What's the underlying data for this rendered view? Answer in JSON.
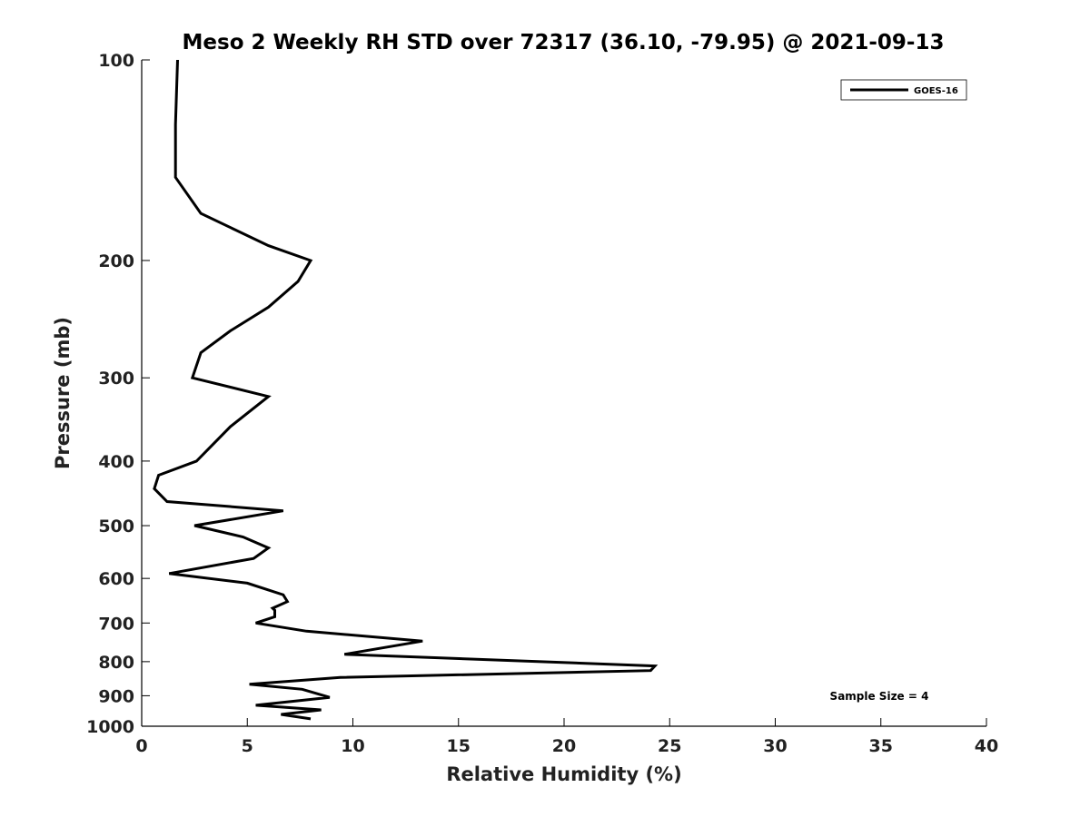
{
  "chart_data": {
    "type": "line",
    "title": "Meso 2 Weekly RH STD over 72317 (36.10, -79.95) @ 2021-09-13",
    "xlabel": "Relative Humidity (%)",
    "ylabel": "Pressure (mb)",
    "xlim": [
      0,
      40
    ],
    "ylim": [
      100,
      1000
    ],
    "y_scale": "log",
    "y_reversed": true,
    "x_ticks": [
      0,
      5,
      10,
      15,
      20,
      25,
      30,
      35,
      40
    ],
    "y_ticks": [
      100,
      200,
      300,
      400,
      500,
      600,
      700,
      800,
      900,
      1000
    ],
    "grid": false,
    "legend_position": "top-right",
    "series": [
      {
        "name": "GOES-16",
        "color": "#000000",
        "points": [
          [
            1.7,
            100
          ],
          [
            1.6,
            125
          ],
          [
            1.6,
            150
          ],
          [
            2.8,
            170
          ],
          [
            6.0,
            190
          ],
          [
            8.0,
            200
          ],
          [
            7.4,
            215
          ],
          [
            6.0,
            235
          ],
          [
            4.2,
            255
          ],
          [
            2.8,
            275
          ],
          [
            2.4,
            300
          ],
          [
            6.0,
            320
          ],
          [
            4.2,
            355
          ],
          [
            2.6,
            400
          ],
          [
            0.8,
            420
          ],
          [
            0.6,
            440
          ],
          [
            1.2,
            460
          ],
          [
            6.7,
            475
          ],
          [
            2.5,
            500
          ],
          [
            4.8,
            520
          ],
          [
            6.0,
            540
          ],
          [
            5.3,
            560
          ],
          [
            1.3,
            590
          ],
          [
            5.0,
            610
          ],
          [
            6.7,
            635
          ],
          [
            6.9,
            650
          ],
          [
            6.2,
            665
          ],
          [
            6.3,
            670
          ],
          [
            6.3,
            685
          ],
          [
            5.4,
            700
          ],
          [
            7.8,
            720
          ],
          [
            13.3,
            745
          ],
          [
            9.6,
            780
          ],
          [
            24.3,
            812
          ],
          [
            24.1,
            825
          ],
          [
            9.4,
            845
          ],
          [
            5.1,
            865
          ],
          [
            7.6,
            880
          ],
          [
            8.9,
            905
          ],
          [
            5.4,
            930
          ],
          [
            8.5,
            945
          ],
          [
            6.6,
            960
          ],
          [
            8.0,
            975
          ]
        ]
      }
    ],
    "annotations": [
      "Sample Size = 4"
    ]
  }
}
